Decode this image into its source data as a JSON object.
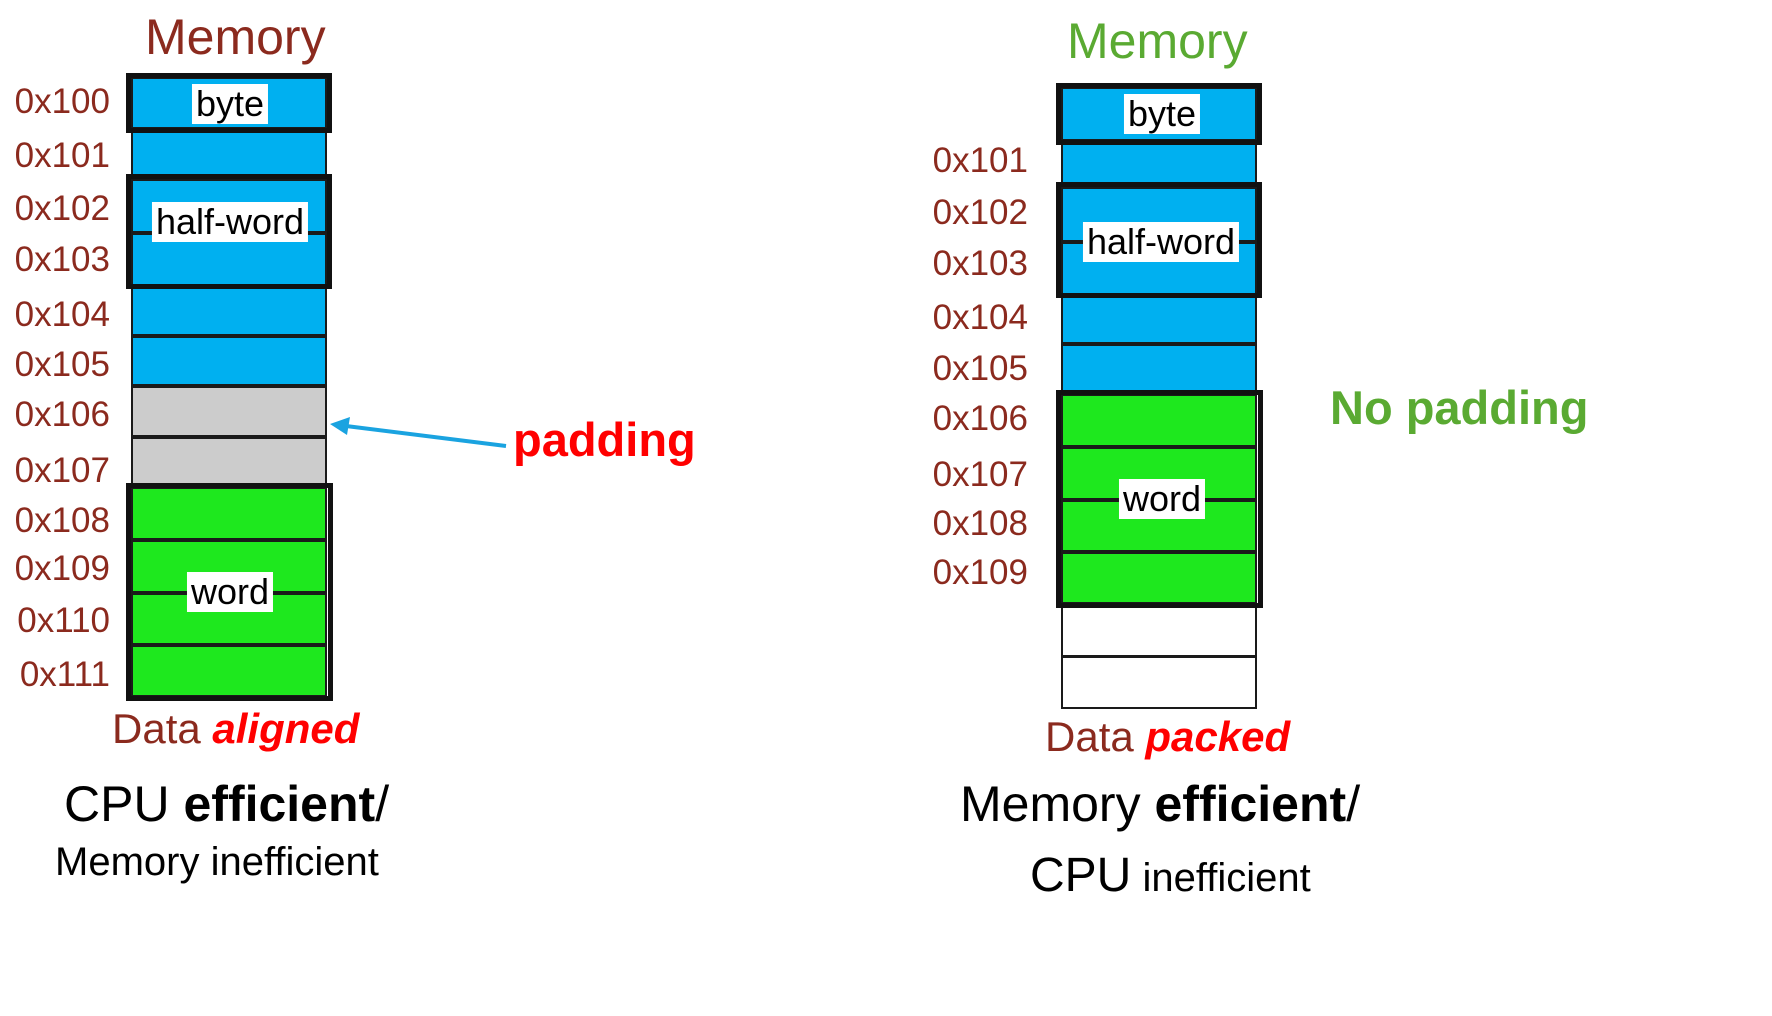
{
  "left": {
    "title": "Memory",
    "title_color": "#8b2a1e",
    "addresses": [
      "0x100",
      "0x101",
      "0x102",
      "0x103",
      "0x104",
      "0x105",
      "0x106",
      "0x107",
      "0x108",
      "0x109",
      "0x110",
      "0x111"
    ],
    "tags": {
      "byte": "byte",
      "half": "half-word",
      "word": "word"
    },
    "padding_label": "padding",
    "caption_prefix": "Data",
    "caption_emph": "aligned",
    "summary_line1_a": "CPU",
    "summary_line1_b": "efficient",
    "summary_line1_c": "/",
    "summary_line2_a": "Memory",
    "summary_line2_b": "inefficient"
  },
  "right": {
    "title": "Memory",
    "title_color": "#5aaa32",
    "addresses": [
      "0x101",
      "0x102",
      "0x103",
      "0x104",
      "0x105",
      "0x106",
      "0x107",
      "0x108",
      "0x109"
    ],
    "tags": {
      "byte": "byte",
      "half": "half-word",
      "word": "word"
    },
    "note": "No padding",
    "caption_prefix": "Data",
    "caption_emph": "packed",
    "summary_line1_a": "Memory",
    "summary_line1_b": "efficient",
    "summary_line1_c": "/",
    "summary_line2_a": "CPU",
    "summary_line2_b": "inefficient"
  },
  "colors": {
    "byte": "#00b0f0",
    "padding": "#cccccc",
    "word": "#1ee81e",
    "label_red": "#ff0000",
    "arrow": "#1aa3e0"
  }
}
